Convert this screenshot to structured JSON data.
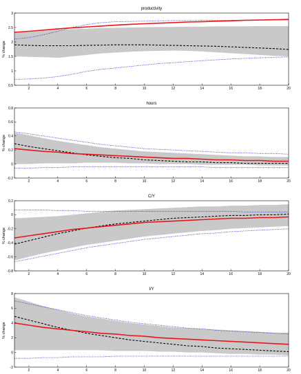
{
  "colors": {
    "band": "#c9c9c9",
    "median": "#e8161b",
    "dotted": "#2b2bb8",
    "dashed": "#000000"
  },
  "chart_data": [
    {
      "type": "line",
      "title": "productivity",
      "ylabel": "% change",
      "xlim": [
        1,
        20
      ],
      "ylim": [
        0.5,
        3
      ],
      "xticks": [
        "2",
        "4",
        "6",
        "8",
        "10",
        "12",
        "14",
        "16",
        "18",
        "20"
      ],
      "yticks": [
        "0.5",
        "1",
        "1.5",
        "2",
        "2.5",
        "3"
      ],
      "x": [
        1,
        2,
        3,
        4,
        5,
        6,
        7,
        8,
        9,
        10,
        11,
        12,
        13,
        14,
        15,
        16,
        17,
        18,
        19,
        20
      ],
      "band_upper": [
        2.3,
        2.35,
        2.38,
        2.42,
        2.44,
        2.46,
        2.48,
        2.49,
        2.5,
        2.51,
        2.52,
        2.52,
        2.53,
        2.53,
        2.54,
        2.54,
        2.54,
        2.55,
        2.55,
        2.55
      ],
      "band_lower": [
        1.5,
        1.48,
        1.47,
        1.45,
        1.5,
        1.55,
        1.6,
        1.63,
        1.66,
        1.68,
        1.69,
        1.7,
        1.69,
        1.67,
        1.64,
        1.61,
        1.58,
        1.55,
        1.52,
        1.5
      ],
      "series": [
        {
          "style": "solid-red",
          "values": [
            2.33,
            2.37,
            2.41,
            2.45,
            2.49,
            2.52,
            2.55,
            2.58,
            2.61,
            2.63,
            2.65,
            2.67,
            2.69,
            2.7,
            2.72,
            2.73,
            2.75,
            2.76,
            2.77,
            2.78
          ]
        },
        {
          "style": "dashed-black",
          "values": [
            1.9,
            1.88,
            1.87,
            1.87,
            1.87,
            1.88,
            1.89,
            1.9,
            1.9,
            1.9,
            1.89,
            1.88,
            1.87,
            1.86,
            1.85,
            1.83,
            1.81,
            1.79,
            1.77,
            1.74
          ]
        },
        {
          "style": "dotted-blue-upper",
          "values": [
            2.1,
            2.15,
            2.25,
            2.37,
            2.5,
            2.6,
            2.67,
            2.7,
            2.71,
            2.72,
            2.73,
            2.74,
            2.74,
            2.75,
            2.75,
            2.75,
            2.76,
            2.76,
            2.76,
            2.76
          ]
        },
        {
          "style": "dotted-blue-lower",
          "values": [
            0.7,
            0.72,
            0.75,
            0.8,
            0.88,
            0.98,
            1.05,
            1.1,
            1.15,
            1.2,
            1.25,
            1.28,
            1.32,
            1.35,
            1.38,
            1.41,
            1.43,
            1.45,
            1.47,
            1.48
          ]
        }
      ]
    },
    {
      "type": "line",
      "title": "hours",
      "ylabel": "% change",
      "xlim": [
        1,
        20
      ],
      "ylim": [
        -0.2,
        0.8
      ],
      "xticks": [
        "2",
        "4",
        "6",
        "8",
        "10",
        "12",
        "14",
        "16",
        "18",
        "20"
      ],
      "yticks": [
        "-0.2",
        "0",
        "0.2",
        "0.4",
        "0.6",
        "0.8"
      ],
      "x": [
        1,
        2,
        3,
        4,
        5,
        6,
        7,
        8,
        9,
        10,
        11,
        12,
        13,
        14,
        15,
        16,
        17,
        18,
        19,
        20
      ],
      "band_upper": [
        0.45,
        0.41,
        0.37,
        0.33,
        0.3,
        0.27,
        0.24,
        0.22,
        0.2,
        0.18,
        0.17,
        0.16,
        0.15,
        0.14,
        0.13,
        0.12,
        0.11,
        0.11,
        0.1,
        0.1
      ],
      "band_lower": [
        0.0,
        0.0,
        0.01,
        0.01,
        0.01,
        0.02,
        0.02,
        0.02,
        0.01,
        0.01,
        0.0,
        0.0,
        0.0,
        -0.01,
        -0.01,
        -0.01,
        -0.01,
        -0.02,
        -0.02,
        -0.02
      ],
      "series": [
        {
          "style": "solid-red",
          "values": [
            0.22,
            0.2,
            0.18,
            0.17,
            0.15,
            0.14,
            0.13,
            0.12,
            0.11,
            0.1,
            0.09,
            0.08,
            0.08,
            0.07,
            0.06,
            0.06,
            0.05,
            0.05,
            0.04,
            0.04
          ]
        },
        {
          "style": "dashed-black",
          "values": [
            0.29,
            0.25,
            0.22,
            0.19,
            0.16,
            0.13,
            0.11,
            0.09,
            0.08,
            0.06,
            0.05,
            0.04,
            0.03,
            0.03,
            0.02,
            0.02,
            0.01,
            0.01,
            0.01,
            0.01
          ]
        },
        {
          "style": "dotted-blue-upper",
          "values": [
            0.46,
            0.43,
            0.4,
            0.37,
            0.34,
            0.31,
            0.28,
            0.26,
            0.24,
            0.22,
            0.21,
            0.2,
            0.19,
            0.18,
            0.17,
            0.16,
            0.16,
            0.15,
            0.15,
            0.14
          ]
        },
        {
          "style": "dotted-blue-lower",
          "values": [
            -0.06,
            -0.06,
            -0.05,
            -0.05,
            -0.04,
            -0.04,
            -0.04,
            -0.04,
            -0.04,
            -0.04,
            -0.04,
            -0.04,
            -0.04,
            -0.04,
            -0.05,
            -0.05,
            -0.05,
            -0.05,
            -0.05,
            -0.05
          ]
        }
      ]
    },
    {
      "type": "line",
      "title": "C/Y",
      "ylabel": "% change",
      "xlim": [
        1,
        20
      ],
      "ylim": [
        -0.8,
        0.2
      ],
      "xticks": [
        "2",
        "4",
        "6",
        "8",
        "10",
        "12",
        "14",
        "16",
        "18",
        "20"
      ],
      "yticks": [
        "-0.8",
        "-0.6",
        "-0.4",
        "-0.2",
        "0",
        "0.2"
      ],
      "x": [
        1,
        2,
        3,
        4,
        5,
        6,
        7,
        8,
        9,
        10,
        11,
        12,
        13,
        14,
        15,
        16,
        17,
        18,
        19,
        20
      ],
      "band_upper": [
        -0.05,
        -0.04,
        -0.03,
        -0.02,
        0.0,
        0.02,
        0.04,
        0.06,
        0.07,
        0.08,
        0.09,
        0.1,
        0.11,
        0.12,
        0.12,
        0.13,
        0.13,
        0.14,
        0.14,
        0.15
      ],
      "band_lower": [
        -0.65,
        -0.6,
        -0.55,
        -0.51,
        -0.47,
        -0.43,
        -0.4,
        -0.37,
        -0.34,
        -0.31,
        -0.29,
        -0.27,
        -0.25,
        -0.23,
        -0.22,
        -0.2,
        -0.19,
        -0.18,
        -0.17,
        -0.16
      ],
      "series": [
        {
          "style": "solid-red",
          "values": [
            -0.33,
            -0.3,
            -0.27,
            -0.24,
            -0.21,
            -0.19,
            -0.17,
            -0.15,
            -0.13,
            -0.11,
            -0.1,
            -0.09,
            -0.08,
            -0.07,
            -0.06,
            -0.05,
            -0.05,
            -0.04,
            -0.04,
            -0.03
          ]
        },
        {
          "style": "dashed-black",
          "values": [
            -0.42,
            -0.37,
            -0.32,
            -0.27,
            -0.23,
            -0.19,
            -0.16,
            -0.13,
            -0.11,
            -0.09,
            -0.07,
            -0.05,
            -0.04,
            -0.03,
            -0.02,
            -0.01,
            -0.01,
            0.0,
            0.0,
            0.01
          ]
        },
        {
          "style": "dotted-blue-upper",
          "values": [
            0.07,
            0.07,
            0.07,
            0.06,
            0.06,
            0.05,
            0.05,
            0.05,
            0.05,
            0.05,
            0.05,
            0.05,
            0.05,
            0.05,
            0.05,
            0.05,
            0.04,
            0.04,
            0.04,
            0.04
          ]
        },
        {
          "style": "dotted-blue-lower",
          "values": [
            -0.67,
            -0.63,
            -0.59,
            -0.55,
            -0.51,
            -0.47,
            -0.44,
            -0.41,
            -0.38,
            -0.35,
            -0.33,
            -0.31,
            -0.29,
            -0.27,
            -0.26,
            -0.24,
            -0.23,
            -0.22,
            -0.21,
            -0.2
          ]
        }
      ]
    },
    {
      "type": "line",
      "title": "I/Y",
      "ylabel": "% change",
      "xlim": [
        1,
        20
      ],
      "ylim": [
        -2,
        8
      ],
      "xticks": [
        "2",
        "4",
        "6",
        "8",
        "10",
        "12",
        "14",
        "16",
        "18",
        "20"
      ],
      "yticks": [
        "-2",
        "0",
        "2",
        "4",
        "6",
        "8"
      ],
      "x": [
        1,
        2,
        3,
        4,
        5,
        6,
        7,
        8,
        9,
        10,
        11,
        12,
        13,
        14,
        15,
        16,
        17,
        18,
        19,
        20
      ],
      "band_upper": [
        7.5,
        6.9,
        6.3,
        5.8,
        5.3,
        4.9,
        4.6,
        4.3,
        4.0,
        3.8,
        3.6,
        3.4,
        3.3,
        3.2,
        3.1,
        3.0,
        2.9,
        2.8,
        2.7,
        2.7
      ],
      "band_lower": [
        0.3,
        0.3,
        0.3,
        0.3,
        0.3,
        0.3,
        0.3,
        0.2,
        0.2,
        0.2,
        0.1,
        0.1,
        0.0,
        0.0,
        -0.1,
        -0.2,
        -0.2,
        -0.3,
        -0.3,
        -0.4
      ],
      "series": [
        {
          "style": "solid-red",
          "values": [
            4.0,
            3.7,
            3.4,
            3.2,
            3.0,
            2.8,
            2.6,
            2.5,
            2.3,
            2.2,
            2.0,
            1.9,
            1.8,
            1.7,
            1.6,
            1.5,
            1.4,
            1.3,
            1.2,
            1.1
          ]
        },
        {
          "style": "dashed-black",
          "values": [
            4.9,
            4.4,
            3.9,
            3.4,
            3.0,
            2.6,
            2.3,
            2.0,
            1.7,
            1.5,
            1.3,
            1.1,
            0.9,
            0.8,
            0.6,
            0.5,
            0.4,
            0.3,
            0.2,
            0.1
          ]
        },
        {
          "style": "dotted-blue-upper",
          "values": [
            7.0,
            6.6,
            6.2,
            5.8,
            5.4,
            5.0,
            4.7,
            4.4,
            4.1,
            3.9,
            3.7,
            3.5,
            3.3,
            3.2,
            3.0,
            2.9,
            2.8,
            2.7,
            2.6,
            2.5
          ]
        },
        {
          "style": "dotted-blue-lower",
          "values": [
            -0.8,
            -0.8,
            -0.7,
            -0.7,
            -0.6,
            -0.6,
            -0.6,
            -0.5,
            -0.5,
            -0.5,
            -0.5,
            -0.5,
            -0.5,
            -0.5,
            -0.5,
            -0.5,
            -0.5,
            -0.5,
            -0.5,
            -0.5
          ]
        }
      ]
    }
  ]
}
